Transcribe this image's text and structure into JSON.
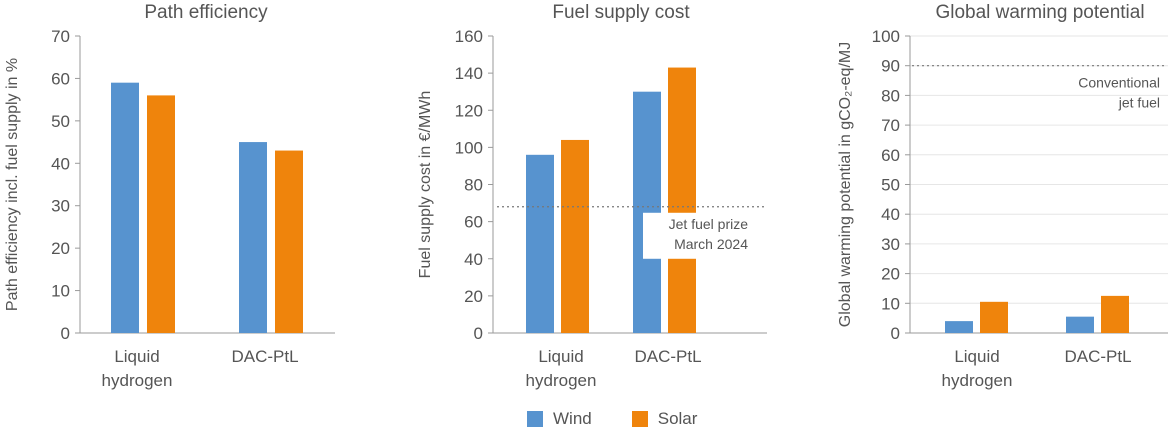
{
  "colors": {
    "wind": "#5793CF",
    "solar": "#EF840C",
    "axis": "#9a9a9a",
    "grid": "#e6e6e6",
    "ref": "#777777",
    "text": "#555555"
  },
  "legend": {
    "wind": "Wind",
    "solar": "Solar"
  },
  "chart_data": [
    {
      "type": "bar",
      "title": "Path efficiency",
      "ylabel": "Path efficiency incl. fuel supply in %",
      "xlabel": "",
      "categories": [
        "Liquid\nhydrogen",
        "DAC-PtL"
      ],
      "series": [
        {
          "name": "Wind",
          "values": [
            59,
            45
          ]
        },
        {
          "name": "Solar",
          "values": [
            56,
            43
          ]
        }
      ],
      "ylim": [
        0,
        70
      ],
      "yticks": [
        0,
        10,
        20,
        30,
        40,
        50,
        60,
        70
      ],
      "grid": false
    },
    {
      "type": "bar",
      "title": "Fuel supply cost",
      "ylabel": "Fuel supply cost in €/MWh",
      "xlabel": "",
      "categories": [
        "Liquid\nhydrogen",
        "DAC-PtL"
      ],
      "series": [
        {
          "name": "Wind",
          "values": [
            96,
            130
          ]
        },
        {
          "name": "Solar",
          "values": [
            104,
            143
          ]
        }
      ],
      "ylim": [
        0,
        160
      ],
      "yticks": [
        0,
        20,
        40,
        60,
        80,
        100,
        120,
        140,
        160
      ],
      "grid": false,
      "reference_line": {
        "value": 68,
        "label": [
          "Jet fuel prize",
          "March 2024"
        ]
      }
    },
    {
      "type": "bar",
      "title": "Global warming potential",
      "ylabel": "Global warming potential in gCO₂-eq/MJ",
      "xlabel": "",
      "categories": [
        "Liquid\nhydrogen",
        "DAC-PtL"
      ],
      "series": [
        {
          "name": "Wind",
          "values": [
            4,
            5.5
          ]
        },
        {
          "name": "Solar",
          "values": [
            10.5,
            12.5
          ]
        }
      ],
      "ylim": [
        0,
        100
      ],
      "yticks": [
        0,
        10,
        20,
        30,
        40,
        50,
        60,
        70,
        80,
        90,
        100
      ],
      "grid": true,
      "reference_line": {
        "value": 90,
        "label": [
          "Conventional",
          "jet fuel"
        ]
      }
    }
  ]
}
